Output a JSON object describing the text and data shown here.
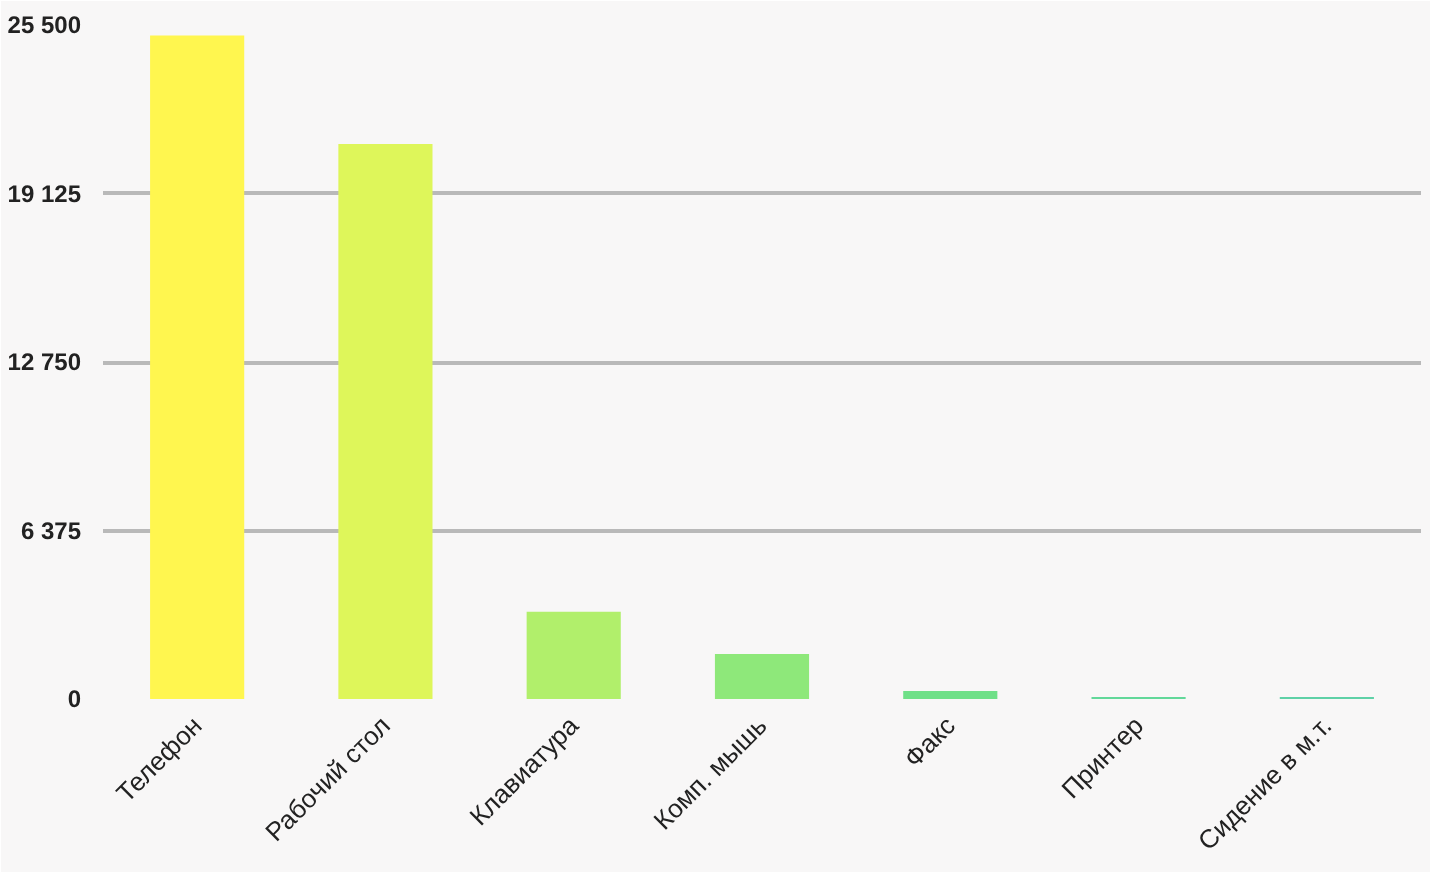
{
  "chart_data": {
    "type": "bar",
    "categories": [
      "Телефон",
      "Рабочий стол",
      "Клавиатура",
      "Комп. мышь",
      "Факс",
      "Принтер",
      "Сидение в м.т."
    ],
    "values": [
      25100,
      21000,
      3300,
      1700,
      300,
      80,
      80
    ],
    "colors": [
      "#fff64f",
      "#def65a",
      "#b1ef6b",
      "#8ee87a",
      "#6fe088",
      "#62d89a",
      "#5fd1a7"
    ],
    "ylim": [
      0,
      25500
    ],
    "yticks": [
      0,
      {
        "value": 6375,
        "label": "6 375"
      },
      {
        "value": 12750,
        "label": "12 750"
      },
      {
        "value": 19125,
        "label": "19 125"
      },
      {
        "value": 25500,
        "label": "25 500"
      }
    ],
    "grid": "y"
  }
}
